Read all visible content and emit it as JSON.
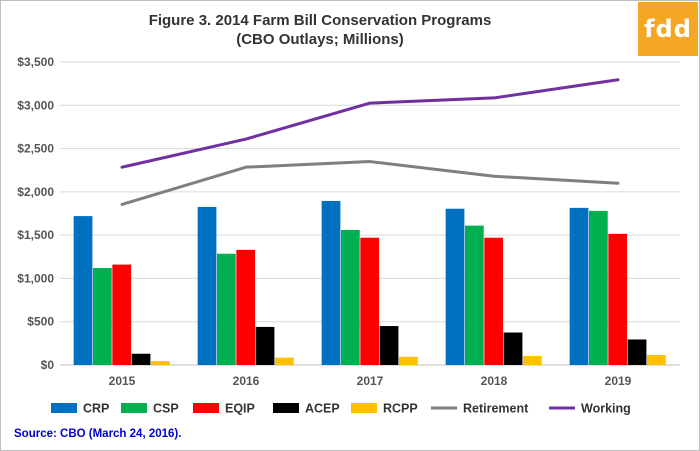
{
  "header": {
    "title_line1": "Figure 3.  2014 Farm Bill Conservation Programs",
    "title_line2": "(CBO Outlays; Millions)",
    "logo_text": "fdd"
  },
  "footer": {
    "source": "Source: CBO (March 24, 2016)."
  },
  "chart_data": {
    "type": "bar",
    "title": "Figure 3.  2014 Farm Bill Conservation Programs (CBO Outlays; Millions)",
    "xlabel": "",
    "ylabel": "",
    "categories": [
      "2015",
      "2016",
      "2017",
      "2018",
      "2019"
    ],
    "ylim": [
      0,
      3500
    ],
    "yticks": [
      0,
      500,
      1000,
      1500,
      2000,
      2500,
      3000,
      3500
    ],
    "ytick_labels": [
      "$0",
      "$500",
      "$1,000",
      "$1,500",
      "$2,000",
      "$2,500",
      "$3,000",
      "$3,500"
    ],
    "grid": true,
    "legend_position": "bottom",
    "series": [
      {
        "name": "CRP",
        "kind": "bar",
        "color": "#0070c0",
        "values": [
          1720,
          1825,
          1895,
          1805,
          1815
        ]
      },
      {
        "name": "CSP",
        "kind": "bar",
        "color": "#00b050",
        "values": [
          1120,
          1285,
          1560,
          1610,
          1780
        ]
      },
      {
        "name": "EQIP",
        "kind": "bar",
        "color": "#ff0000",
        "values": [
          1160,
          1330,
          1470,
          1470,
          1515
        ]
      },
      {
        "name": "ACEP",
        "kind": "bar",
        "color": "#000000",
        "values": [
          130,
          440,
          450,
          375,
          295
        ]
      },
      {
        "name": "RCPP",
        "kind": "bar",
        "color": "#ffc000",
        "values": [
          45,
          85,
          95,
          105,
          115
        ]
      },
      {
        "name": "Retirement",
        "kind": "line",
        "color": "#7f7f7f",
        "values": [
          1855,
          2285,
          2350,
          2180,
          2100
        ]
      },
      {
        "name": "Working",
        "kind": "line",
        "color": "#7030a0",
        "values": [
          2285,
          2610,
          3025,
          3085,
          3295
        ]
      }
    ]
  }
}
